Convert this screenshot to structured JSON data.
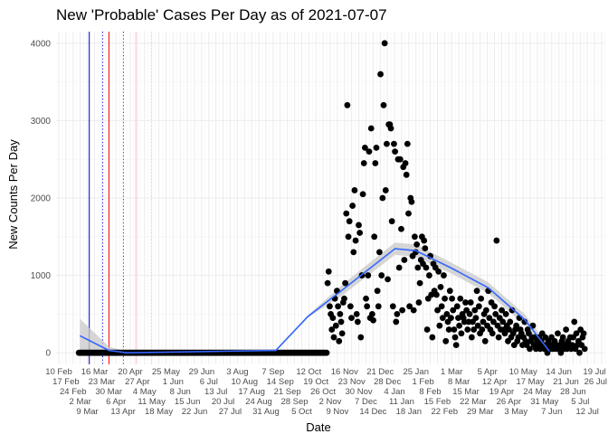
{
  "chart_data": {
    "type": "scatter",
    "title": "New 'Probable' Cases Per Day as of 2021-07-07",
    "xlabel": "Date",
    "ylabel": "New Counts Per Day",
    "xlim": [
      "2020-02-15",
      "2021-07-28"
    ],
    "ylim": [
      -150,
      4150
    ],
    "y_ticks": [
      0,
      1000,
      2000,
      3000,
      4000
    ],
    "y_tick_labels": [
      "0",
      "1000",
      "2000",
      "3000",
      "4000"
    ],
    "x_tick_labels": [
      "10 Feb",
      "17 Feb",
      "24 Feb",
      "2 Mar",
      "9 Mar",
      "16 Mar",
      "23 Mar",
      "30 Mar",
      "6 Apr",
      "13 Apr",
      "20 Apr",
      "27 Apr",
      "4 May",
      "11 May",
      "18 May",
      "25 May",
      "1 Jun",
      "8 Jun",
      "15 Jun",
      "22 Jun",
      "29 Jun",
      "6 Jul",
      "13 Jul",
      "20 Jul",
      "27 Jul",
      "3 Aug",
      "10 Aug",
      "17 Aug",
      "24 Aug",
      "31 Aug",
      "7 Sep",
      "14 Sep",
      "21 Sep",
      "28 Sep",
      "5 Oct",
      "12 Oct",
      "19 Oct",
      "26 Oct",
      "2 Nov",
      "9 Nov",
      "16 Nov",
      "23 Nov",
      "30 Nov",
      "7 Dec",
      "14 Dec",
      "21 Dec",
      "28 Dec",
      "4 Jan",
      "11 Jan",
      "18 Jan",
      "25 Jan",
      "1 Feb",
      "8 Feb",
      "15 Feb",
      "22 Feb",
      "1 Mar",
      "8 Mar",
      "15 Mar",
      "22 Mar",
      "29 Mar",
      "5 Apr",
      "12 Apr",
      "19 Apr",
      "26 Apr",
      "3 May",
      "10 May",
      "17 May",
      "24 May",
      "31 May",
      "7 Jun",
      "14 Jun",
      "21 Jun",
      "28 Jun",
      "5 Jul",
      "12 Jul",
      "19 Jul",
      "26 Jul"
    ],
    "grid": true,
    "legend": "none",
    "point_color": "#000000",
    "series": [
      {
        "start_date": "2020-03-08",
        "values": [
          0,
          0,
          0,
          0,
          0,
          0,
          0,
          0,
          0,
          0,
          0,
          0,
          0,
          0,
          0,
          0,
          0,
          0,
          0,
          0,
          0,
          0,
          0,
          0,
          0,
          0,
          0,
          0,
          0,
          0,
          0,
          0,
          0,
          0,
          0,
          0,
          0,
          0,
          0,
          0,
          0,
          0,
          0,
          0,
          0,
          0,
          0,
          0,
          0,
          0,
          0,
          0,
          0,
          0,
          0,
          0,
          0,
          0,
          0,
          0,
          0,
          0,
          0,
          0,
          0,
          0,
          0,
          0,
          0,
          0,
          0,
          0,
          0,
          0,
          0,
          0,
          0,
          0,
          0,
          0,
          0,
          0,
          0,
          0,
          0,
          0,
          0,
          0,
          0,
          0,
          0,
          0,
          0,
          0,
          0,
          0,
          0,
          0,
          0,
          0,
          0,
          0,
          0,
          0,
          0,
          0,
          0,
          0,
          0,
          0,
          0,
          0,
          0,
          0,
          0,
          0,
          0,
          0,
          0,
          0,
          0,
          0,
          0,
          0,
          0,
          0,
          0,
          0,
          0,
          0,
          0,
          0,
          0,
          0,
          0,
          0,
          0,
          0,
          0,
          0,
          0,
          0,
          0,
          0,
          0,
          0,
          0,
          0,
          0,
          0,
          0,
          0,
          0,
          0,
          0,
          0,
          0,
          0,
          0,
          0,
          0,
          0,
          0,
          0,
          0,
          0,
          0,
          0,
          0,
          0,
          0,
          0,
          0,
          0,
          0,
          0,
          0,
          0,
          0,
          0,
          0,
          0,
          0,
          0,
          0,
          0,
          0,
          0,
          0,
          0,
          0,
          0,
          0,
          0,
          0,
          0,
          0,
          0,
          0,
          0,
          0,
          0,
          0,
          0,
          0,
          0,
          0,
          0,
          0,
          0,
          0,
          0,
          0,
          0,
          0,
          0,
          0,
          0,
          0,
          0,
          0,
          0,
          0,
          0,
          0,
          0,
          0,
          0,
          0,
          0,
          0,
          0,
          0,
          0,
          0,
          0,
          0,
          0,
          0,
          0,
          900,
          1050,
          600,
          500,
          300,
          450,
          200,
          700,
          350,
          800,
          600,
          150,
          500,
          400,
          250,
          650,
          700,
          900,
          1800,
          3200,
          1500,
          1700,
          600,
          450,
          1900,
          1300,
          2100,
          1450,
          500,
          400,
          1650,
          1550,
          200,
          1000,
          2050,
          2450,
          2650,
          700,
          600,
          1000,
          2600,
          450,
          2900,
          500,
          420,
          1500,
          2450,
          2650,
          800,
          600,
          1300,
          3600,
          1000,
          2000,
          3200,
          4000,
          2100,
          2700,
          950,
          2950,
          2950,
          2900,
          1700,
          600,
          2700,
          2600,
          400,
          500,
          2500,
          1100,
          2500,
          1600,
          550,
          2400,
          1200,
          2450,
          2300,
          2700,
          1800,
          600,
          2000,
          1950,
          1250,
          550,
          1500,
          1300,
          1400,
          1100,
          650,
          900,
          1200,
          1500,
          1150,
          1450,
          1350,
          1100,
          300,
          700,
          1000,
          1250,
          750,
          200,
          1150,
          800,
          1100,
          750,
          550,
          1050,
          350,
          850,
          600,
          450,
          1000,
          700,
          150,
          500,
          400,
          300,
          800,
          450,
          700,
          550,
          300,
          200,
          100,
          600,
          450,
          350,
          700,
          250,
          500,
          450,
          400,
          650,
          550,
          300,
          400,
          500,
          650,
          200,
          400,
          300,
          550,
          450,
          800,
          350,
          600,
          250,
          700,
          300,
          400,
          500,
          150,
          550,
          350,
          800,
          450,
          300,
          650,
          250,
          400,
          600,
          500,
          1450,
          350,
          200,
          450,
          300,
          550,
          400,
          300,
          250,
          500,
          350,
          150,
          300,
          400,
          200,
          550,
          250,
          100,
          300,
          350,
          150,
          200,
          450,
          300,
          250,
          100,
          200,
          400,
          150,
          100,
          300,
          250,
          50,
          150,
          200,
          350,
          100,
          200,
          50,
          150,
          100,
          200,
          50,
          150,
          250,
          100,
          50,
          200,
          100,
          0,
          150,
          50,
          100,
          200,
          50,
          100,
          150,
          50,
          100,
          250,
          50,
          100,
          0,
          150,
          200,
          50,
          100,
          300,
          50,
          150,
          100,
          200,
          50,
          100,
          200,
          400,
          50,
          250,
          100,
          150,
          0,
          300,
          100,
          200,
          250,
          50
        ]
      }
    ],
    "smooth": {
      "color": "#3366ff",
      "band_color": "#c8c8c8",
      "dates": [
        "2020-03-09",
        "2020-04-06",
        "2020-04-23",
        "2020-09-14",
        "2020-10-15",
        "2020-11-18",
        "2021-01-07",
        "2021-01-27",
        "2021-03-03",
        "2021-04-07",
        "2021-05-12",
        "2021-06-05"
      ],
      "values": [
        220,
        30,
        0,
        30,
        470,
        820,
        1345,
        1320,
        1090,
        840,
        430,
        20
      ],
      "band": [
        220,
        50,
        15,
        10,
        15,
        70,
        80,
        80,
        70,
        70,
        70,
        60
      ]
    },
    "vlines": [
      {
        "date": "2020-03-18",
        "color": "#0000cc",
        "style": "solid"
      },
      {
        "date": "2020-03-31",
        "color": "#0000ff",
        "style": "dotted"
      },
      {
        "date": "2020-04-06",
        "color": "#ff0000",
        "style": "solid"
      },
      {
        "date": "2020-04-20",
        "color": "#ff0000",
        "style": "dotted"
      },
      {
        "date": "2020-05-02",
        "color": "#ffc0cb",
        "style": "solid"
      },
      {
        "date": "2020-05-17",
        "color": "#ffc0cb",
        "style": "dotted"
      }
    ]
  }
}
